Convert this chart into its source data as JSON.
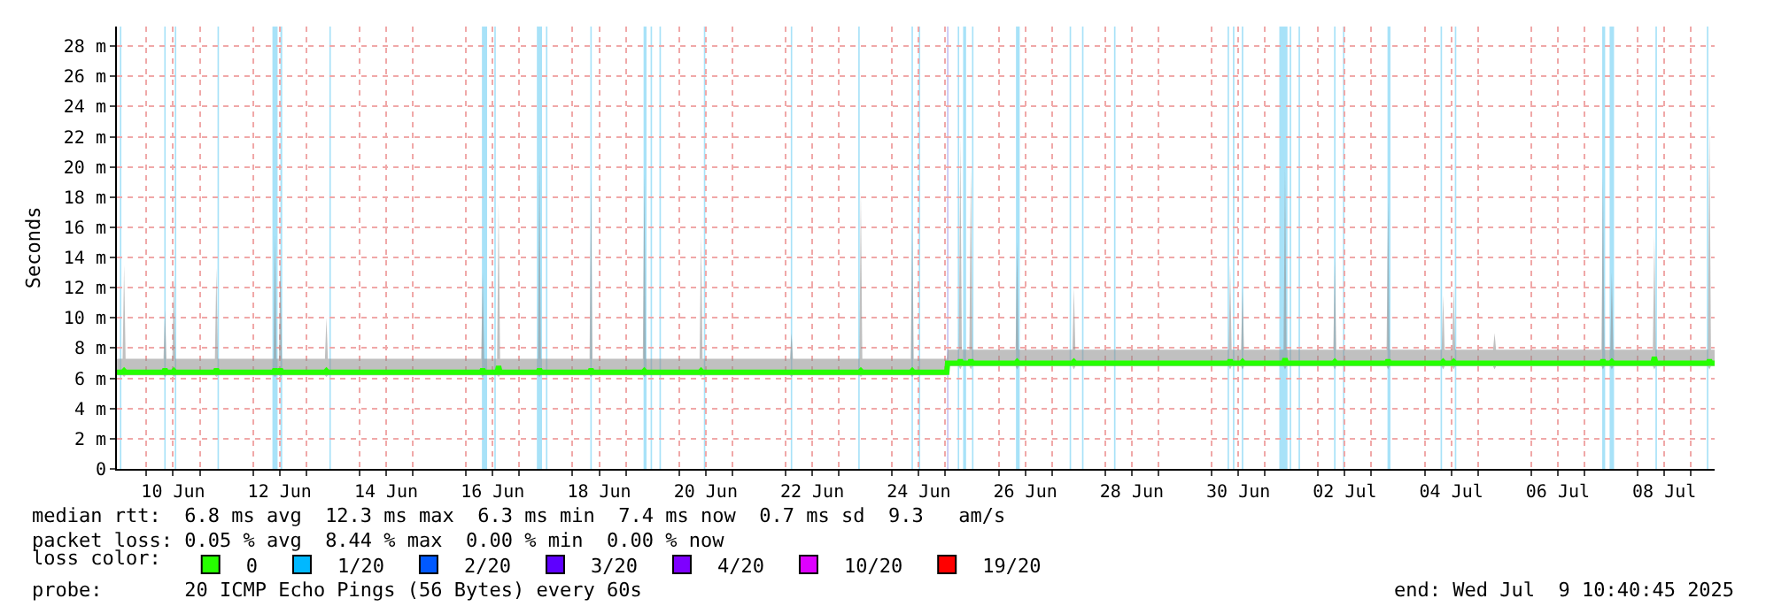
{
  "chart_data": {
    "type": "line",
    "ylabel": "Seconds",
    "legend_title": "loss color:",
    "legend": "bottom",
    "grid": true,
    "xlim": [
      "2025-06-09T10:40",
      "2025-07-09T10:40"
    ],
    "xticks": [
      {
        "value": "2025-06-10",
        "label": null
      },
      {
        "value": "2025-06-10T12:00",
        "label": "10 Jun"
      },
      {
        "value": "2025-06-11",
        "label": null
      },
      {
        "value": "2025-06-12",
        "label": null
      },
      {
        "value": "2025-06-12T12:00",
        "label": "12 Jun"
      },
      {
        "value": "2025-06-13",
        "label": null
      },
      {
        "value": "2025-06-14",
        "label": null
      },
      {
        "value": "2025-06-14T12:00",
        "label": "14 Jun"
      },
      {
        "value": "2025-06-15",
        "label": null
      },
      {
        "value": "2025-06-16",
        "label": null
      },
      {
        "value": "2025-06-16T12:00",
        "label": "16 Jun"
      },
      {
        "value": "2025-06-17",
        "label": null
      },
      {
        "value": "2025-06-18",
        "label": null
      },
      {
        "value": "2025-06-18T12:00",
        "label": "18 Jun"
      },
      {
        "value": "2025-06-19",
        "label": null
      },
      {
        "value": "2025-06-20",
        "label": null
      },
      {
        "value": "2025-06-20T12:00",
        "label": "20 Jun"
      },
      {
        "value": "2025-06-21",
        "label": null
      },
      {
        "value": "2025-06-22",
        "label": null
      },
      {
        "value": "2025-06-22T12:00",
        "label": "22 Jun"
      },
      {
        "value": "2025-06-23",
        "label": null
      },
      {
        "value": "2025-06-24",
        "label": null
      },
      {
        "value": "2025-06-24T12:00",
        "label": "24 Jun"
      },
      {
        "value": "2025-06-25",
        "label": null
      },
      {
        "value": "2025-06-26",
        "label": null
      },
      {
        "value": "2025-06-26T12:00",
        "label": "26 Jun"
      },
      {
        "value": "2025-06-27",
        "label": null
      },
      {
        "value": "2025-06-28",
        "label": null
      },
      {
        "value": "2025-06-28T12:00",
        "label": "28 Jun"
      },
      {
        "value": "2025-06-29",
        "label": null
      },
      {
        "value": "2025-06-30",
        "label": null
      },
      {
        "value": "2025-06-30T12:00",
        "label": "30 Jun"
      },
      {
        "value": "2025-07-01",
        "label": null
      },
      {
        "value": "2025-07-02",
        "label": null
      },
      {
        "value": "2025-07-02T12:00",
        "label": "02 Jul"
      },
      {
        "value": "2025-07-03",
        "label": null
      },
      {
        "value": "2025-07-04",
        "label": null
      },
      {
        "value": "2025-07-04T12:00",
        "label": "04 Jul"
      },
      {
        "value": "2025-07-05",
        "label": null
      },
      {
        "value": "2025-07-06",
        "label": null
      },
      {
        "value": "2025-07-06T12:00",
        "label": "06 Jul"
      },
      {
        "value": "2025-07-07",
        "label": null
      },
      {
        "value": "2025-07-08",
        "label": null
      },
      {
        "value": "2025-07-08T12:00",
        "label": "08 Jul"
      },
      {
        "value": "2025-07-09",
        "label": null
      }
    ],
    "ylim": [
      0,
      29.3
    ],
    "yticks": [
      0,
      {
        "value": 2,
        "label": "2 m"
      },
      {
        "value": 4,
        "label": "4 m"
      },
      {
        "value": 6,
        "label": "6 m"
      },
      {
        "value": 8,
        "label": "8 m"
      },
      {
        "value": 10,
        "label": "10 m"
      },
      {
        "value": 12,
        "label": "12 m"
      },
      {
        "value": 14,
        "label": "14 m"
      },
      {
        "value": 16,
        "label": "16 m"
      },
      {
        "value": 18,
        "label": "18 m"
      },
      {
        "value": 20,
        "label": "20 m"
      },
      {
        "value": 22,
        "label": "22 m"
      },
      {
        "value": 24,
        "label": "24 m"
      },
      {
        "value": 26,
        "label": "26 m"
      },
      {
        "value": 28,
        "label": "28 m"
      }
    ],
    "series": [
      {
        "name": "0",
        "color": "#26ff00",
        "x": [
          "2025-06-09T10:41",
          "2025-06-09T13:15",
          "2025-06-09T13:55",
          "2025-06-09T14:35",
          "2025-06-10T07:40",
          "2025-06-10T08:20",
          "2025-06-10T09:00",
          "2025-06-10T11:40",
          "2025-06-10T12:20",
          "2025-06-10T13:00",
          "2025-06-11T06:50",
          "2025-06-11T07:30",
          "2025-06-11T08:10",
          "2025-06-12T09:15",
          "2025-06-12T09:55",
          "2025-06-12T10:35",
          "2025-06-12T11:40",
          "2025-06-12T12:20",
          "2025-06-12T13:00",
          "2025-06-13T08:25",
          "2025-06-13T09:05",
          "2025-06-13T09:45",
          "2025-06-16T06:50",
          "2025-06-16T07:30",
          "2025-06-16T08:10",
          "2025-06-16T14:00",
          "2025-06-16T14:40",
          "2025-06-16T15:20",
          "2025-06-17T08:25",
          "2025-06-17T09:05",
          "2025-06-17T09:45",
          "2025-06-18T07:40",
          "2025-06-18T08:20",
          "2025-06-18T09:00",
          "2025-06-19T07:40",
          "2025-06-19T08:20",
          "2025-06-19T09:00",
          "2025-06-20T09:15",
          "2025-06-20T09:55",
          "2025-06-20T10:35",
          "2025-06-22T02:00",
          "2025-06-22T02:40",
          "2025-06-22T03:20",
          "2025-06-23T09:15",
          "2025-06-23T09:55",
          "2025-06-23T10:35",
          "2025-06-24T08:25",
          "2025-06-24T09:05",
          "2025-06-24T09:45",
          "2025-06-25T00:40",
          "2025-06-25T01:00",
          "2025-06-25T06:05",
          "2025-06-25T06:45",
          "2025-06-25T07:25",
          "2025-06-25T10:50",
          "2025-06-25T11:30",
          "2025-06-25T12:10",
          "2025-06-26T07:40",
          "2025-06-26T08:20",
          "2025-06-26T09:00",
          "2025-06-27T09:15",
          "2025-06-27T09:55",
          "2025-06-27T10:35",
          "2025-06-30T07:40",
          "2025-06-30T08:20",
          "2025-06-30T09:00",
          "2025-06-30T13:15",
          "2025-06-30T13:55",
          "2025-06-30T14:35",
          "2025-07-01T08:25",
          "2025-07-01T09:05",
          "2025-07-01T09:45",
          "2025-07-02T06:50",
          "2025-07-02T07:30",
          "2025-07-02T08:10",
          "2025-07-03T06:50",
          "2025-07-03T07:30",
          "2025-07-03T08:10",
          "2025-07-04T07:40",
          "2025-07-04T08:20",
          "2025-07-04T09:00",
          "2025-07-04T12:25",
          "2025-07-04T13:05",
          "2025-07-04T13:45",
          "2025-07-05T06:50",
          "2025-07-05T07:30",
          "2025-07-05T08:10",
          "2025-07-07T07:40",
          "2025-07-07T08:20",
          "2025-07-07T09:00",
          "2025-07-07T11:40",
          "2025-07-07T12:20",
          "2025-07-07T13:00",
          "2025-07-08T06:50",
          "2025-07-08T07:30",
          "2025-07-08T08:10",
          "2025-07-09T07:40",
          "2025-07-09T08:20",
          "2025-07-09T09:00",
          "2025-07-09T10:40"
        ],
        "values": [
          6.4,
          6.4,
          6.5,
          6.4,
          6.4,
          6.6,
          6.4,
          6.4,
          6.5,
          6.4,
          6.4,
          6.6,
          6.4,
          6.4,
          6.6,
          6.4,
          6.4,
          6.6,
          6.4,
          6.4,
          6.5,
          6.4,
          6.4,
          6.6,
          6.4,
          6.4,
          6.8,
          6.4,
          6.4,
          6.6,
          6.4,
          6.4,
          6.6,
          6.4,
          6.4,
          6.5,
          6.4,
          6.4,
          6.5,
          6.4,
          6.4,
          6.4,
          6.4,
          6.4,
          6.5,
          6.4,
          6.4,
          6.5,
          6.4,
          6.4,
          7.0,
          7.0,
          7.2,
          7.0,
          7.0,
          7.2,
          7.0,
          7.0,
          7.1,
          7.0,
          7.0,
          7.1,
          7.0,
          7.0,
          7.2,
          7.0,
          7.0,
          7.1,
          7.0,
          7.0,
          7.3,
          7.0,
          7.0,
          7.1,
          7.0,
          7.0,
          7.2,
          7.0,
          7.0,
          7.1,
          7.0,
          7.0,
          7.1,
          7.0,
          7.0,
          7.0,
          7.0,
          7.0,
          7.2,
          7.0,
          7.0,
          7.1,
          7.0,
          7.0,
          7.4,
          7.0,
          7.0,
          7.2,
          7.0,
          7.0
        ],
        "lower": [
          6.2,
          6.2,
          6.1,
          6.2,
          6.2,
          6.1,
          6.2,
          6.2,
          6.1,
          6.2,
          6.2,
          6.1,
          6.2,
          6.2,
          6.1,
          6.2,
          6.2,
          6.1,
          6.2,
          6.2,
          6.1,
          6.2,
          6.2,
          6.1,
          6.2,
          6.2,
          6.1,
          6.2,
          6.2,
          6.1,
          6.2,
          6.2,
          6.1,
          6.2,
          6.2,
          6.1,
          6.2,
          6.2,
          6.1,
          6.2,
          6.2,
          6.1,
          6.2,
          6.2,
          6.1,
          6.2,
          6.2,
          6.1,
          6.2,
          6.2,
          6.8,
          6.8,
          6.6,
          6.8,
          6.8,
          6.6,
          6.8,
          6.8,
          6.6,
          6.8,
          6.8,
          6.6,
          6.8,
          6.8,
          6.6,
          6.8,
          6.8,
          6.6,
          6.8,
          6.8,
          6.6,
          6.8,
          6.8,
          6.6,
          6.8,
          6.8,
          6.6,
          6.8,
          6.8,
          6.6,
          6.8,
          6.8,
          6.6,
          6.8,
          6.8,
          6.6,
          6.8,
          6.8,
          6.6,
          6.8,
          6.8,
          6.6,
          6.8,
          6.8,
          6.6,
          6.8,
          6.8,
          6.6,
          6.8,
          6.8
        ],
        "upper": [
          7.3,
          7.3,
          13.5,
          7.3,
          7.3,
          10.5,
          7.3,
          7.3,
          12.8,
          7.3,
          7.3,
          13.3,
          7.3,
          7.3,
          15.5,
          7.3,
          7.3,
          14,
          7.3,
          7.3,
          10,
          7.3,
          7.3,
          13,
          7.3,
          7.3,
          17.6,
          7.3,
          7.3,
          20.5,
          7.3,
          7.3,
          19.2,
          7.3,
          7.3,
          19.5,
          7.3,
          7.3,
          15.5,
          7.3,
          7.3,
          9,
          7.3,
          7.3,
          18.4,
          7.3,
          7.3,
          16.4,
          7.3,
          7.3,
          7.9,
          7.9,
          22,
          7.9,
          7.9,
          20,
          7.9,
          7.9,
          15,
          7.9,
          7.9,
          12,
          7.9,
          7.9,
          13.5,
          7.9,
          7.9,
          12,
          7.9,
          7.9,
          20,
          7.9,
          7.9,
          14,
          7.9,
          7.9,
          18,
          7.9,
          7.9,
          11.5,
          7.9,
          7.9,
          12,
          7.9,
          7.9,
          9,
          7.9,
          7.9,
          19.3,
          7.9,
          7.9,
          13,
          7.9,
          7.9,
          15.4,
          7.9,
          7.9,
          23,
          7.9,
          7.9
        ]
      },
      {
        "name": "1/20",
        "color": "#00b8ff"
      },
      {
        "name": "2/20",
        "color": "#0059ff"
      },
      {
        "name": "3/20",
        "color": "#5e00ff"
      },
      {
        "name": "4/20",
        "color": "#7e00ff"
      },
      {
        "name": "10/20",
        "color": "#dd00ff"
      },
      {
        "name": "19/20",
        "color": "#ff0000"
      }
    ],
    "bands": [
      {
        "axis": "x",
        "from": "2025-06-09T12:00",
        "to": "2025-06-09T12:40",
        "color": "#a8e2f8"
      },
      {
        "axis": "x",
        "from": "2025-06-10T08:00",
        "to": "2025-06-10T08:40",
        "color": "#a8e2f8"
      },
      {
        "axis": "x",
        "from": "2025-06-10T12:45",
        "to": "2025-06-10T13:25",
        "color": "#a8e2f8"
      },
      {
        "axis": "x",
        "from": "2025-06-11T08:00",
        "to": "2025-06-11T08:40",
        "color": "#a8e2f8"
      },
      {
        "axis": "x",
        "from": "2025-06-12T08:45",
        "to": "2025-06-12T11:05",
        "color": "#a8e2f8"
      },
      {
        "axis": "x",
        "from": "2025-06-12T12:20",
        "to": "2025-06-12T13:10",
        "color": "#a8e2f8"
      },
      {
        "axis": "x",
        "from": "2025-06-13T10:25",
        "to": "2025-06-13T11:05",
        "color": "#a8e2f8"
      },
      {
        "axis": "x",
        "from": "2025-06-16T07:10",
        "to": "2025-06-16T09:30",
        "color": "#a8e2f8"
      },
      {
        "axis": "x",
        "from": "2025-06-16T12:45",
        "to": "2025-06-16T13:25",
        "color": "#a8e2f8"
      },
      {
        "axis": "x",
        "from": "2025-06-17T07:55",
        "to": "2025-06-17T10:15",
        "color": "#a8e2f8"
      },
      {
        "axis": "x",
        "from": "2025-06-17T12:00",
        "to": "2025-06-17T12:40",
        "color": "#a8e2f8"
      },
      {
        "axis": "x",
        "from": "2025-06-18T08:00",
        "to": "2025-06-18T08:40",
        "color": "#a8e2f8"
      },
      {
        "axis": "x",
        "from": "2025-06-19T08:00",
        "to": "2025-06-19T09:20",
        "color": "#a8e2f8"
      },
      {
        "axis": "x",
        "from": "2025-06-19T11:10",
        "to": "2025-06-19T11:50",
        "color": "#a8e2f8"
      },
      {
        "axis": "x",
        "from": "2025-06-19T15:10",
        "to": "2025-06-19T15:50",
        "color": "#a8e2f8"
      },
      {
        "axis": "x",
        "from": "2025-06-20T11:10",
        "to": "2025-06-20T11:50",
        "color": "#a8e2f8"
      },
      {
        "axis": "x",
        "from": "2025-06-22T02:20",
        "to": "2025-06-22T03:00",
        "color": "#a8e2f8"
      },
      {
        "axis": "x",
        "from": "2025-06-23T08:45",
        "to": "2025-06-23T09:25",
        "color": "#a8e2f8"
      },
      {
        "axis": "x",
        "from": "2025-06-24T08:45",
        "to": "2025-06-24T09:25",
        "color": "#a8e2f8"
      },
      {
        "axis": "x",
        "from": "2025-06-24T12:00",
        "to": "2025-06-24T12:40",
        "color": "#a8e2f8"
      },
      {
        "axis": "x",
        "from": "2025-06-25T00:45",
        "to": "2025-06-25T01:25",
        "color": "#c4c4f4"
      },
      {
        "axis": "x",
        "from": "2025-06-25T05:35",
        "to": "2025-06-25T06:15",
        "color": "#a8e2f8"
      },
      {
        "axis": "x",
        "from": "2025-06-25T08:00",
        "to": "2025-06-25T09:20",
        "color": "#a8e2f8"
      },
      {
        "axis": "x",
        "from": "2025-06-25T12:00",
        "to": "2025-06-25T12:40",
        "color": "#a8e2f8"
      },
      {
        "axis": "x",
        "from": "2025-06-26T07:50",
        "to": "2025-06-26T09:30",
        "color": "#a8e2f8"
      },
      {
        "axis": "x",
        "from": "2025-06-27T08:00",
        "to": "2025-06-27T08:40",
        "color": "#a8e2f8"
      },
      {
        "axis": "x",
        "from": "2025-06-27T13:35",
        "to": "2025-06-27T14:15",
        "color": "#a8e2f8"
      },
      {
        "axis": "x",
        "from": "2025-06-28T04:00",
        "to": "2025-06-28T04:40",
        "color": "#a8e2f8"
      },
      {
        "axis": "x",
        "from": "2025-06-30T07:10",
        "to": "2025-06-30T07:50",
        "color": "#a8e2f8"
      },
      {
        "axis": "x",
        "from": "2025-06-30T09:35",
        "to": "2025-06-30T10:15",
        "color": "#a8e2f8"
      },
      {
        "axis": "x",
        "from": "2025-06-30T13:35",
        "to": "2025-06-30T14:15",
        "color": "#a8e2f8"
      },
      {
        "axis": "x",
        "from": "2025-07-01T06:30",
        "to": "2025-07-01T10:10",
        "color": "#a8e2f8"
      },
      {
        "axis": "x",
        "from": "2025-07-01T11:10",
        "to": "2025-07-01T11:50",
        "color": "#a8e2f8"
      },
      {
        "axis": "x",
        "from": "2025-07-01T15:10",
        "to": "2025-07-01T15:50",
        "color": "#a8e2f8"
      },
      {
        "axis": "x",
        "from": "2025-07-02T07:10",
        "to": "2025-07-02T07:50",
        "color": "#a8e2f8"
      },
      {
        "axis": "x",
        "from": "2025-07-02T11:10",
        "to": "2025-07-02T11:50",
        "color": "#a8e2f8"
      },
      {
        "axis": "x",
        "from": "2025-07-03T07:15",
        "to": "2025-07-03T08:35",
        "color": "#a8e2f8"
      },
      {
        "axis": "x",
        "from": "2025-07-04T07:10",
        "to": "2025-07-04T07:50",
        "color": "#a8e2f8"
      },
      {
        "axis": "x",
        "from": "2025-07-04T13:35",
        "to": "2025-07-04T14:15",
        "color": "#a8e2f8"
      },
      {
        "axis": "x",
        "from": "2025-07-07T08:00",
        "to": "2025-07-07T09:20",
        "color": "#a8e2f8"
      },
      {
        "axis": "x",
        "from": "2025-07-07T11:20",
        "to": "2025-07-07T13:20",
        "color": "#a8e2f8"
      },
      {
        "axis": "x",
        "from": "2025-07-08T08:00",
        "to": "2025-07-08T08:40",
        "color": "#a8e2f8"
      },
      {
        "axis": "x",
        "from": "2025-07-09T07:10",
        "to": "2025-07-09T07:50",
        "color": "#a8e2f8"
      }
    ],
    "annotations": [
      "median rtt:  6.8 ms avg  12.3 ms max  6.3 ms min  7.4 ms now  0.7 ms sd  9.3   am/s",
      "packet loss: 0.05 % avg  8.44 % max  0.00 % min  0.00 % now",
      "probe:       20 ICMP Echo Pings (56 Bytes) every 60s",
      "end: Wed Jul  9 10:40:45 2025"
    ]
  }
}
